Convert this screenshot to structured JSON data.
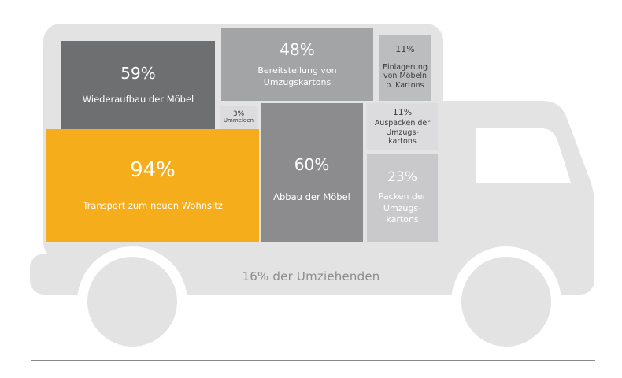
{
  "chart_data": {
    "type": "treemap",
    "caption": "16% der Umziehenden",
    "items": [
      {
        "value": "94%",
        "label": "Transport zum neuen Wohnsitz",
        "color": "#f5ad1b"
      },
      {
        "value": "60%",
        "label": "Abbau der Möbel",
        "color": "#8c8c8e"
      },
      {
        "value": "59%",
        "label": "Wiederaufbau der Möbel",
        "color": "#6e6f71"
      },
      {
        "value": "48%",
        "label": "Bereitstellung von Umzugskartons",
        "color": "#a3a4a6"
      },
      {
        "value": "23%",
        "label": "Packen der Umzugs-kartons",
        "color": "#c9c9cb"
      },
      {
        "value": "11%",
        "label": "Einlagerung von Möbeln o. Kartons",
        "color": "#bcbdbf"
      },
      {
        "value": "11%",
        "label": "Auspacken der Umzugs-kartons",
        "color": "#dcdcde"
      },
      {
        "value": "3%",
        "label": "Ummelden",
        "color": "#dcdcde"
      }
    ]
  }
}
